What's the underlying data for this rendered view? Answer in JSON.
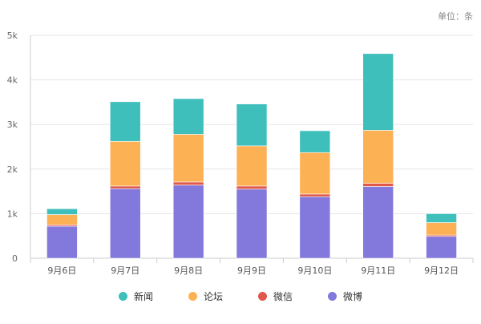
{
  "unit_label": "单位：条",
  "chart_data": {
    "type": "bar",
    "stacked": true,
    "categories": [
      "9月6日",
      "9月7日",
      "9月8日",
      "9月9日",
      "9月10日",
      "9月11日",
      "9月12日"
    ],
    "series": [
      {
        "name": "微博",
        "color": "#8378db",
        "values": [
          720,
          1560,
          1640,
          1550,
          1380,
          1610,
          490
        ]
      },
      {
        "name": "微信",
        "color": "#e0584a",
        "values": [
          30,
          60,
          70,
          70,
          60,
          70,
          30
        ]
      },
      {
        "name": "论坛",
        "color": "#fdb155",
        "values": [
          230,
          1000,
          1070,
          900,
          930,
          1190,
          280
        ]
      },
      {
        "name": "新闻",
        "color": "#3fbfbc",
        "values": [
          130,
          890,
          800,
          940,
          490,
          1720,
          200
        ]
      }
    ],
    "legend_order": [
      "新闻",
      "论坛",
      "微信",
      "微博"
    ],
    "yticks": [
      "0",
      "1k",
      "2k",
      "3k",
      "4k",
      "5k"
    ],
    "ylim": [
      0,
      5000
    ],
    "legend_position": "bottom-center",
    "grid": true
  }
}
